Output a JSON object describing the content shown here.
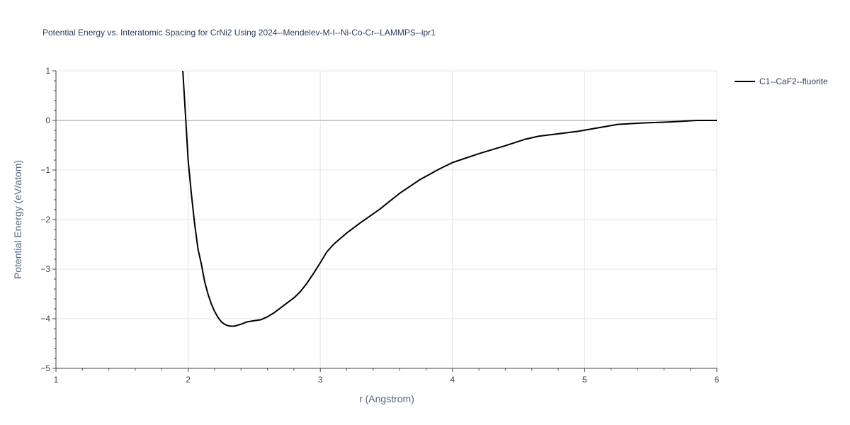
{
  "chart_data": {
    "type": "line",
    "title": "Potential Energy vs. Interatomic Spacing for CrNi2 Using 2024--Mendelev-M-I--Ni-Co-Cr--LAMMPS--ipr1",
    "xlabel": "r (Angstrom)",
    "ylabel": "Potential Energy (eV/atom)",
    "xlim": [
      1,
      6
    ],
    "ylim": [
      -5,
      1
    ],
    "xticks": [
      "1",
      "2",
      "3",
      "4",
      "5",
      "6"
    ],
    "yticks": [
      "1",
      "0",
      "−1",
      "−2",
      "−3",
      "−4",
      "−5"
    ],
    "grid": true,
    "legend_position": "top-right",
    "series": [
      {
        "name": "C1--CaF2--fluorite",
        "color": "#000000",
        "x": [
          1.96,
          1.98,
          2.0,
          2.025,
          2.05,
          2.075,
          2.1,
          2.125,
          2.15,
          2.175,
          2.2,
          2.225,
          2.25,
          2.275,
          2.3,
          2.325,
          2.35,
          2.4,
          2.45,
          2.5,
          2.55,
          2.6,
          2.65,
          2.7,
          2.75,
          2.8,
          2.85,
          2.9,
          2.95,
          3.0,
          3.05,
          3.1,
          3.2,
          3.3,
          3.45,
          3.6,
          3.75,
          3.9,
          4.0,
          4.2,
          4.4,
          4.55,
          4.65,
          4.8,
          4.95,
          5.1,
          5.25,
          5.45,
          5.65,
          5.85,
          6.0
        ],
        "y": [
          1.0,
          0.1,
          -0.8,
          -1.5,
          -2.1,
          -2.6,
          -2.9,
          -3.25,
          -3.5,
          -3.7,
          -3.85,
          -3.97,
          -4.06,
          -4.11,
          -4.14,
          -4.15,
          -4.15,
          -4.11,
          -4.06,
          -4.04,
          -4.02,
          -3.96,
          -3.88,
          -3.78,
          -3.68,
          -3.58,
          -3.45,
          -3.28,
          -3.08,
          -2.87,
          -2.65,
          -2.5,
          -2.27,
          -2.07,
          -1.79,
          -1.47,
          -1.2,
          -0.98,
          -0.85,
          -0.67,
          -0.51,
          -0.38,
          -0.32,
          -0.27,
          -0.22,
          -0.15,
          -0.08,
          -0.05,
          -0.03,
          0.0,
          0.0
        ]
      }
    ]
  }
}
